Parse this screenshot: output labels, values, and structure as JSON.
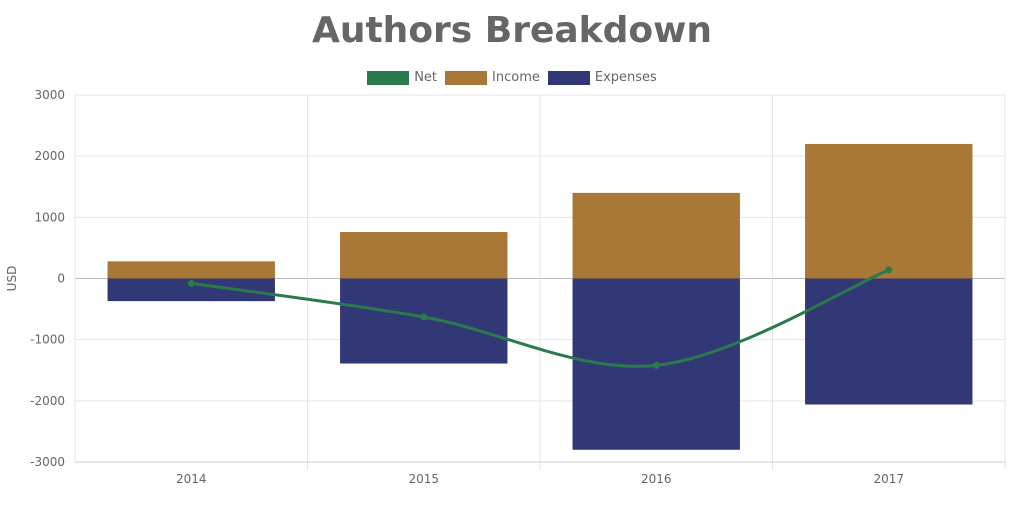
{
  "chart_data": {
    "type": "bar",
    "title": "Authors Breakdown",
    "xlabel": "",
    "ylabel": "USD",
    "categories": [
      "2014",
      "2015",
      "2016",
      "2017"
    ],
    "ylim": [
      -3000,
      3000
    ],
    "yticks": [
      3000,
      2000,
      1000,
      0,
      -1000,
      -2000,
      -3000
    ],
    "grid": true,
    "legend_position": "top-center",
    "series": [
      {
        "name": "Net",
        "kind": "line",
        "smooth": true,
        "color": "#2a7a4e",
        "values": [
          -80,
          -630,
          -1420,
          140
        ]
      },
      {
        "name": "Income",
        "kind": "bar",
        "color": "#a97837",
        "values": [
          280,
          760,
          1400,
          2200
        ]
      },
      {
        "name": "Expenses",
        "kind": "bar",
        "color": "#323875",
        "values": [
          -370,
          -1390,
          -2800,
          -2060
        ]
      }
    ]
  },
  "legend": [
    "Net",
    "Income",
    "Expenses"
  ]
}
